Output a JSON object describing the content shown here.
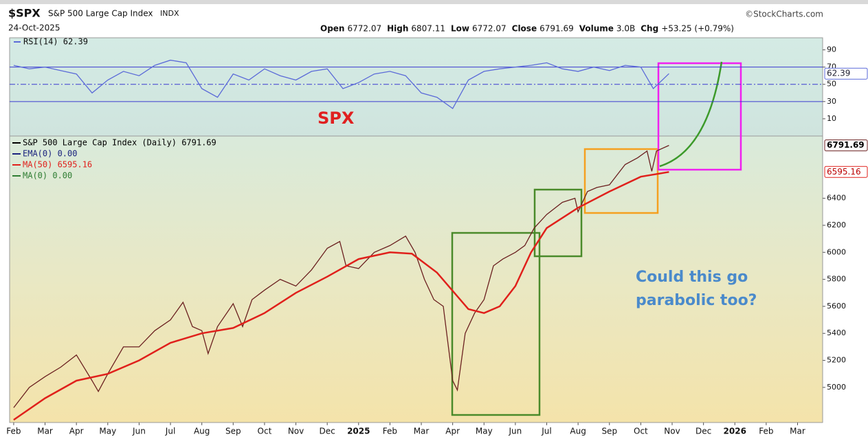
{
  "header": {
    "symbol": "$SPX",
    "name": "S&P 500 Large Cap Index",
    "exchange": "INDX",
    "date": "24-Oct-2025",
    "source": "©StockCharts.com",
    "quote": [
      {
        "label": "Open",
        "value": 6772.07
      },
      {
        "label": "High",
        "value": 6807.11
      },
      {
        "label": "Low",
        "value": 6772.07
      },
      {
        "label": "Close",
        "value": 6791.69
      },
      {
        "label": "Volume",
        "value": "3.0B"
      },
      {
        "label": "Chg",
        "value": "+53.25 (+0.79%)"
      }
    ]
  },
  "chart_data": [
    {
      "type": "line",
      "title": "RSI(14) 62.39",
      "annotation": "SPX",
      "xlim": [
        -0.13,
        25.8
      ],
      "ylim": [
        -10,
        104
      ],
      "yticks": [
        10,
        30,
        50,
        70,
        90
      ],
      "hlines": [
        {
          "value": 70,
          "dashed": false
        },
        {
          "value": 50,
          "dashed": true
        },
        {
          "value": 30,
          "dashed": false
        }
      ],
      "series": [
        {
          "name": "RSI(14)",
          "color": "#5b6ad8",
          "x": [
            0,
            0.5,
            1,
            1.5,
            2,
            2.5,
            3,
            3.5,
            4,
            4.5,
            5,
            5.5,
            6,
            6.5,
            7,
            7.5,
            8,
            8.5,
            9,
            9.5,
            10,
            10.5,
            11,
            11.5,
            12,
            12.5,
            13,
            13.5,
            14,
            14.5,
            15,
            15.5,
            16,
            16.5,
            17,
            17.5,
            18,
            18.5,
            19,
            19.5,
            20,
            20.4,
            20.9
          ],
          "values": [
            72,
            68,
            70,
            66,
            62,
            40,
            55,
            65,
            60,
            72,
            78,
            75,
            45,
            35,
            62,
            55,
            68,
            60,
            55,
            65,
            68,
            45,
            52,
            62,
            65,
            60,
            40,
            35,
            22,
            55,
            65,
            68,
            70,
            72,
            75,
            68,
            65,
            70,
            66,
            72,
            70,
            45,
            62.39
          ]
        }
      ]
    },
    {
      "type": "line",
      "annotation": "Could this go parabolic too?",
      "xlim": [
        -0.13,
        25.8
      ],
      "ylim": [
        4740,
        6861
      ],
      "yticks": [
        5000,
        5200,
        5400,
        5600,
        5800,
        6000,
        6200,
        6400
      ],
      "xticks": [
        {
          "value": 0,
          "label": "Feb"
        },
        {
          "value": 1,
          "label": "Mar"
        },
        {
          "value": 2,
          "label": "Apr"
        },
        {
          "value": 3,
          "label": "May"
        },
        {
          "value": 4,
          "label": "Jun"
        },
        {
          "value": 5,
          "label": "Jul"
        },
        {
          "value": 6,
          "label": "Aug"
        },
        {
          "value": 7,
          "label": "Sep"
        },
        {
          "value": 8,
          "label": "Oct"
        },
        {
          "value": 9,
          "label": "Nov"
        },
        {
          "value": 10,
          "label": "Dec"
        },
        {
          "value": 11,
          "label": "2025"
        },
        {
          "value": 12,
          "label": "Feb"
        },
        {
          "value": 13,
          "label": "Mar"
        },
        {
          "value": 14,
          "label": "Apr"
        },
        {
          "value": 15,
          "label": "May"
        },
        {
          "value": 16,
          "label": "Jun"
        },
        {
          "value": 17,
          "label": "Jul"
        },
        {
          "value": 18,
          "label": "Aug"
        },
        {
          "value": 19,
          "label": "Sep"
        },
        {
          "value": 20,
          "label": "Oct"
        },
        {
          "value": 21,
          "label": "Nov"
        },
        {
          "value": 22,
          "label": "Dec"
        },
        {
          "value": 23,
          "label": "2026"
        },
        {
          "value": 24,
          "label": "Feb"
        },
        {
          "value": 25,
          "label": "Mar"
        }
      ],
      "legend_extra": [
        {
          "name": "EMA(0) 0.00",
          "color": "#1a237e"
        },
        {
          "name": "MA(0) 0.00",
          "color": "#2e7d32"
        }
      ],
      "series": [
        {
          "name": "S&P 500 Large Cap Index (Daily) 6791.69",
          "color": "#6b2020",
          "x": [
            0,
            0.5,
            1,
            1.5,
            2,
            2.5,
            2.7,
            3,
            3.5,
            4,
            4.5,
            5,
            5.4,
            5.7,
            6,
            6.2,
            6.5,
            7,
            7.3,
            7.6,
            8,
            8.5,
            9,
            9.5,
            10,
            10.4,
            10.6,
            11,
            11.5,
            12,
            12.5,
            12.8,
            13.1,
            13.4,
            13.7,
            14,
            14.15,
            14.4,
            14.7,
            15,
            15.3,
            15.6,
            16,
            16.3,
            16.6,
            17,
            17.5,
            17.9,
            18,
            18.3,
            18.6,
            19,
            19.5,
            19.9,
            20.2,
            20.35,
            20.5,
            20.9
          ],
          "values": [
            4850,
            5000,
            5080,
            5150,
            5240,
            5050,
            4970,
            5100,
            5300,
            5300,
            5420,
            5500,
            5630,
            5450,
            5420,
            5250,
            5450,
            5620,
            5450,
            5650,
            5720,
            5800,
            5750,
            5870,
            6030,
            6080,
            5900,
            5880,
            6000,
            6050,
            6120,
            6000,
            5800,
            5650,
            5600,
            5050,
            4980,
            5400,
            5550,
            5650,
            5900,
            5950,
            6000,
            6050,
            6180,
            6280,
            6370,
            6400,
            6300,
            6450,
            6480,
            6500,
            6650,
            6700,
            6750,
            6600,
            6750,
            6791.69
          ]
        },
        {
          "name": "MA(50) 6595.16",
          "color": "#e0201b",
          "x": [
            0,
            1,
            2,
            3,
            4,
            5,
            6,
            7,
            8,
            9,
            10,
            11,
            12,
            12.7,
            13.5,
            14.5,
            15,
            15.5,
            16,
            16.5,
            17,
            18,
            19,
            20,
            20.9
          ],
          "values": [
            4760,
            4920,
            5050,
            5100,
            5200,
            5330,
            5400,
            5440,
            5550,
            5700,
            5820,
            5950,
            6000,
            5990,
            5850,
            5580,
            5550,
            5600,
            5750,
            6000,
            6180,
            6330,
            6450,
            6560,
            6595.16
          ]
        }
      ]
    }
  ]
}
